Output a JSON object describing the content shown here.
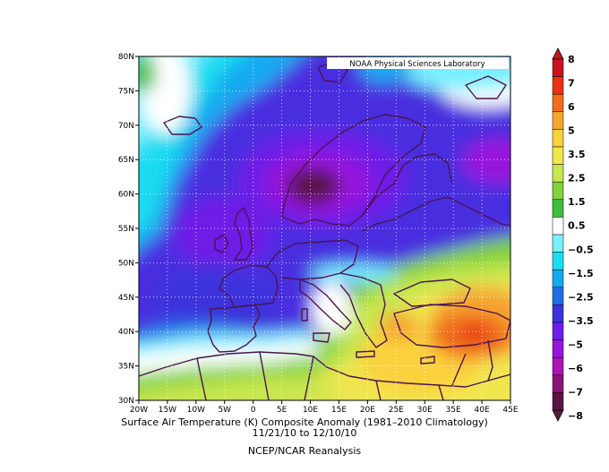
{
  "credit": "NOAA Physical Sciences Laboratory",
  "caption": {
    "title": "Surface Air Temperature (K) Composite Anomaly (1981–2010 Climatology)",
    "dates": "11/21/10   to 12/10/10",
    "source": "NCEP/NCAR Reanalysis"
  },
  "map": {
    "lon_range": [
      -20,
      45
    ],
    "lat_range": [
      30,
      80
    ],
    "lon_ticks": [
      "20W",
      "15W",
      "10W",
      "5W",
      "0",
      "5E",
      "10E",
      "15E",
      "20E",
      "25E",
      "30E",
      "35E",
      "40E",
      "45E"
    ],
    "lat_ticks": [
      "30N",
      "35N",
      "40N",
      "45N",
      "50N",
      "55N",
      "60N",
      "65N",
      "70N",
      "75N",
      "80N"
    ]
  },
  "colorbar": {
    "labels": [
      "8",
      "7",
      "6",
      "5",
      "3.5",
      "2.5",
      "1.5",
      "0.5",
      "−0.5",
      "−1.5",
      "−2.5",
      "−3.5",
      "−5",
      "−6",
      "−7",
      "−8"
    ],
    "colors": [
      "#c8141e",
      "#e83214",
      "#f06e1e",
      "#f5a532",
      "#fad23c",
      "#f0e650",
      "#c8e650",
      "#82d23c",
      "#3cbe3c",
      "#ffffff",
      "#78f0ff",
      "#1edcf0",
      "#14aaf0",
      "#1e6ee6",
      "#3c32dc",
      "#6e1ee6",
      "#9614dc",
      "#aa14b4",
      "#8c1478",
      "#5a1446"
    ],
    "top_color": "#c8141e",
    "bottom_color": "#501e3c"
  }
}
